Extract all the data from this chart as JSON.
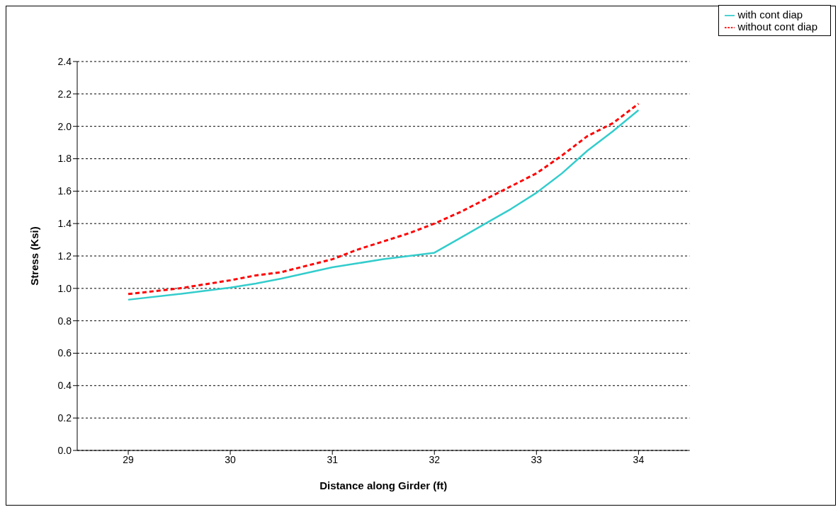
{
  "chart_data": {
    "type": "line",
    "xlabel": "Distance along Girder (ft)",
    "ylabel": "Stress (Ksi)",
    "xlim": [
      28.5,
      34.5
    ],
    "xticks": [
      29,
      30,
      31,
      32,
      33,
      34
    ],
    "ylim": [
      0,
      2.4
    ],
    "yticks": [
      {
        "value": 0,
        "label": "0.0"
      },
      {
        "value": 0.2,
        "label": "0.2"
      },
      {
        "value": 0.4,
        "label": "0.4"
      },
      {
        "value": 0.6,
        "label": "0.6"
      },
      {
        "value": 0.8,
        "label": "0.8"
      },
      {
        "value": 1,
        "label": "1.0"
      },
      {
        "value": 1.2,
        "label": "1.2"
      },
      {
        "value": 1.4,
        "label": "1.4"
      },
      {
        "value": 1.6,
        "label": "1.6"
      },
      {
        "value": 1.8,
        "label": "1.8"
      },
      {
        "value": 2,
        "label": "2.0"
      },
      {
        "value": 2.2,
        "label": "2.2"
      },
      {
        "value": 2.4,
        "label": "2.4"
      }
    ],
    "grid": "y",
    "legend": "top right",
    "marker": "none",
    "x": [
      29,
      29.5,
      30,
      30.25,
      30.5,
      30.75,
      31,
      31.25,
      31.5,
      31.75,
      32,
      32.25,
      32.5,
      32.75,
      33,
      33.25,
      33.5,
      33.75,
      34
    ],
    "series": [
      {
        "name": "with cont diap",
        "color": "#33cccc",
        "line_style": "solid",
        "values": [
          0.93,
          0.965,
          1.005,
          1.03,
          1.06,
          1.095,
          1.13,
          1.155,
          1.18,
          1.2,
          1.22,
          1.31,
          1.4,
          1.49,
          1.59,
          1.71,
          1.85,
          1.97,
          2.1
        ]
      },
      {
        "name": "without cont diap",
        "color": "#ff0000",
        "line_style": "dashed",
        "values": [
          0.965,
          1.0,
          1.05,
          1.08,
          1.1,
          1.14,
          1.18,
          1.24,
          1.29,
          1.34,
          1.4,
          1.47,
          1.55,
          1.63,
          1.71,
          1.82,
          1.94,
          2.02,
          2.14
        ]
      }
    ]
  }
}
